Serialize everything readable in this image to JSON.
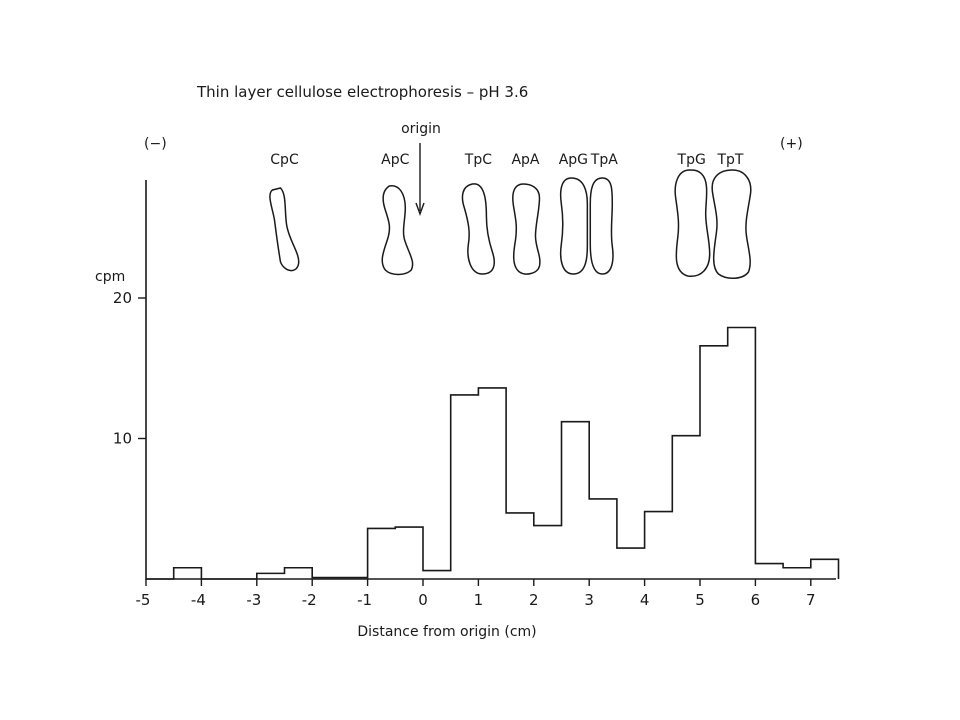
{
  "chart_data": {
    "type": "bar",
    "title": "Thin layer cellulose electrophoresis – pH 3.6",
    "xlabel": "Distance from origin (cm)",
    "ylabel": "cpm",
    "xlim": [
      -5,
      7.5
    ],
    "ylim": [
      0,
      20
    ],
    "x_ticks": [
      -5,
      -4,
      -3,
      -2,
      -1,
      0,
      1,
      2,
      3,
      4,
      5,
      6,
      7
    ],
    "y_ticks": [
      20,
      10
    ],
    "bin_width": 0.5,
    "bin_starts": [
      -5,
      -4.5,
      -4,
      -3.5,
      -3,
      -2.5,
      -2,
      -1.5,
      -1,
      -0.5,
      0,
      0.5,
      1,
      1.5,
      2,
      2.5,
      3,
      3.5,
      4,
      4.5,
      5,
      5.5,
      6,
      6.5,
      7
    ],
    "values": [
      0,
      0.8,
      0,
      0,
      0.4,
      0.8,
      0.1,
      0.1,
      3.6,
      3.7,
      0.6,
      13.1,
      13.6,
      4.7,
      3.8,
      11.2,
      5.7,
      2.2,
      4.8,
      10.2,
      16.6,
      17.9,
      1.1,
      0.8,
      1.4
    ],
    "polarity": {
      "negative": "(−)",
      "positive": "(+)"
    },
    "origin_label": "origin",
    "origin_x": 0,
    "spots": [
      {
        "label": "CpC",
        "x": -2.5
      },
      {
        "label": "ApC",
        "x": -0.5
      },
      {
        "label": "TpC",
        "x": 1.0
      },
      {
        "label": "ApA",
        "x": 1.85
      },
      {
        "label": "ApG",
        "x": 2.75
      },
      {
        "label": "TpA",
        "x": 3.2
      },
      {
        "label": "TpG",
        "x": 4.85
      },
      {
        "label": "TpT",
        "x": 5.55
      }
    ],
    "grid": false,
    "legend": "none"
  }
}
